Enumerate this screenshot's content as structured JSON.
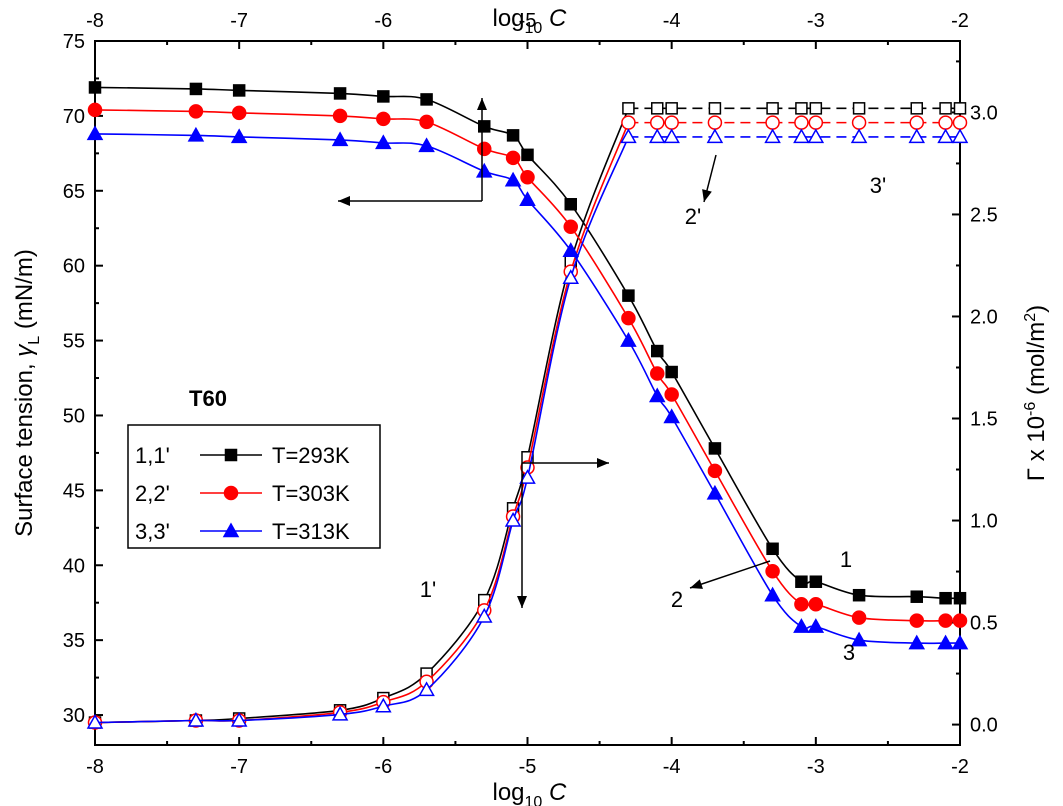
{
  "chart_data": {
    "type": "line",
    "title": "T60",
    "x_axis": {
      "label_base": "log",
      "label_sub": "10",
      "label_var": "C",
      "range": [
        -8,
        -2
      ],
      "ticks": [
        -8,
        -7,
        -6,
        -5,
        -4,
        -3,
        -2
      ],
      "tick_labels": [
        "-8",
        "-7",
        "-6",
        "-5",
        "-4",
        "-3",
        "-2"
      ]
    },
    "x_top_axis": {
      "label_base": "log",
      "label_sub": "10",
      "label_var": "C",
      "ticks": [
        -8,
        -7,
        -6,
        -5,
        -4,
        -3,
        -2
      ],
      "tick_labels": [
        "-8",
        "-7",
        "-6",
        "-5",
        "-4",
        "-3",
        "-2"
      ]
    },
    "y_left": {
      "label_main": "Surface tension, ",
      "label_sym": "γ",
      "label_sub": "L",
      "label_unit": " (mN/m)",
      "range": [
        28,
        75
      ],
      "ticks": [
        30,
        35,
        40,
        45,
        50,
        55,
        60,
        65,
        70,
        75
      ],
      "tick_labels": [
        "30",
        "35",
        "40",
        "45",
        "50",
        "55",
        "60",
        "65",
        "70",
        "75"
      ]
    },
    "y_right": {
      "label_main": "Γ x 10",
      "label_sup": "-6",
      "label_unit": " (mol/m",
      "label_unit_sup": "2",
      "label_close": ")",
      "range": [
        -0.1,
        3.35
      ],
      "ticks": [
        0.0,
        0.5,
        1.0,
        1.5,
        2.0,
        2.5,
        3.0
      ],
      "tick_labels": [
        "0.0",
        "0.5",
        "1.0",
        "1.5",
        "2.0",
        "2.5",
        "3.0"
      ]
    },
    "x": [
      -8,
      -7.3,
      -7,
      -6.3,
      -6,
      -5.7,
      -5.3,
      -5.1,
      -5.0,
      -4.7,
      -4.3,
      -4.1,
      -4.0,
      -3.7,
      -3.3,
      -3.1,
      -3.0,
      -2.7,
      -2.3,
      -2.1,
      -2.0
    ],
    "series": [
      {
        "name": "T=293K",
        "id": "1,1'",
        "color": "#000000",
        "marker": "square",
        "surface_tension": [
          71.9,
          71.8,
          71.7,
          71.5,
          71.3,
          71.1,
          69.3,
          68.7,
          67.4,
          64.1,
          58.0,
          54.3,
          52.9,
          47.8,
          41.1,
          38.9,
          38.9,
          38.0,
          37.9,
          37.8,
          37.8
        ],
        "gamma": [
          0.01,
          0.02,
          0.03,
          0.07,
          0.13,
          0.25,
          0.61,
          1.06,
          1.31,
          2.27,
          3.02,
          3.02,
          3.02,
          3.02,
          3.02,
          3.02,
          3.02,
          3.02,
          3.02,
          3.02,
          3.02
        ]
      },
      {
        "name": "T=303K",
        "id": "2,2'",
        "color": "#ff0000",
        "marker": "circle",
        "surface_tension": [
          70.4,
          70.3,
          70.2,
          70.0,
          69.8,
          69.6,
          67.8,
          67.2,
          65.9,
          62.6,
          56.5,
          52.8,
          51.4,
          46.3,
          39.6,
          37.4,
          37.4,
          36.5,
          36.3,
          36.3,
          36.3
        ],
        "gamma": [
          0.01,
          0.02,
          0.02,
          0.06,
          0.11,
          0.21,
          0.56,
          1.02,
          1.26,
          2.22,
          2.95,
          2.95,
          2.95,
          2.95,
          2.95,
          2.95,
          2.95,
          2.95,
          2.95,
          2.95,
          2.95
        ]
      },
      {
        "name": "T=313K",
        "id": "3,3'",
        "color": "#0000ff",
        "marker": "triangle",
        "surface_tension": [
          68.8,
          68.7,
          68.6,
          68.4,
          68.2,
          68.0,
          66.3,
          65.7,
          64.4,
          61.0,
          55.0,
          51.3,
          49.9,
          44.8,
          38.0,
          35.9,
          35.9,
          35.0,
          34.8,
          34.8,
          34.8
        ],
        "gamma": [
          0.01,
          0.02,
          0.02,
          0.05,
          0.09,
          0.17,
          0.53,
          1.0,
          1.21,
          2.19,
          2.88,
          2.88,
          2.88,
          2.88,
          2.88,
          2.88,
          2.88,
          2.88,
          2.88,
          2.88,
          2.88
        ]
      }
    ],
    "annotations": [
      "1",
      "2",
      "3",
      "1'",
      "2'",
      "3'"
    ],
    "legend": {
      "placement": "center-left",
      "title": "T60"
    }
  }
}
